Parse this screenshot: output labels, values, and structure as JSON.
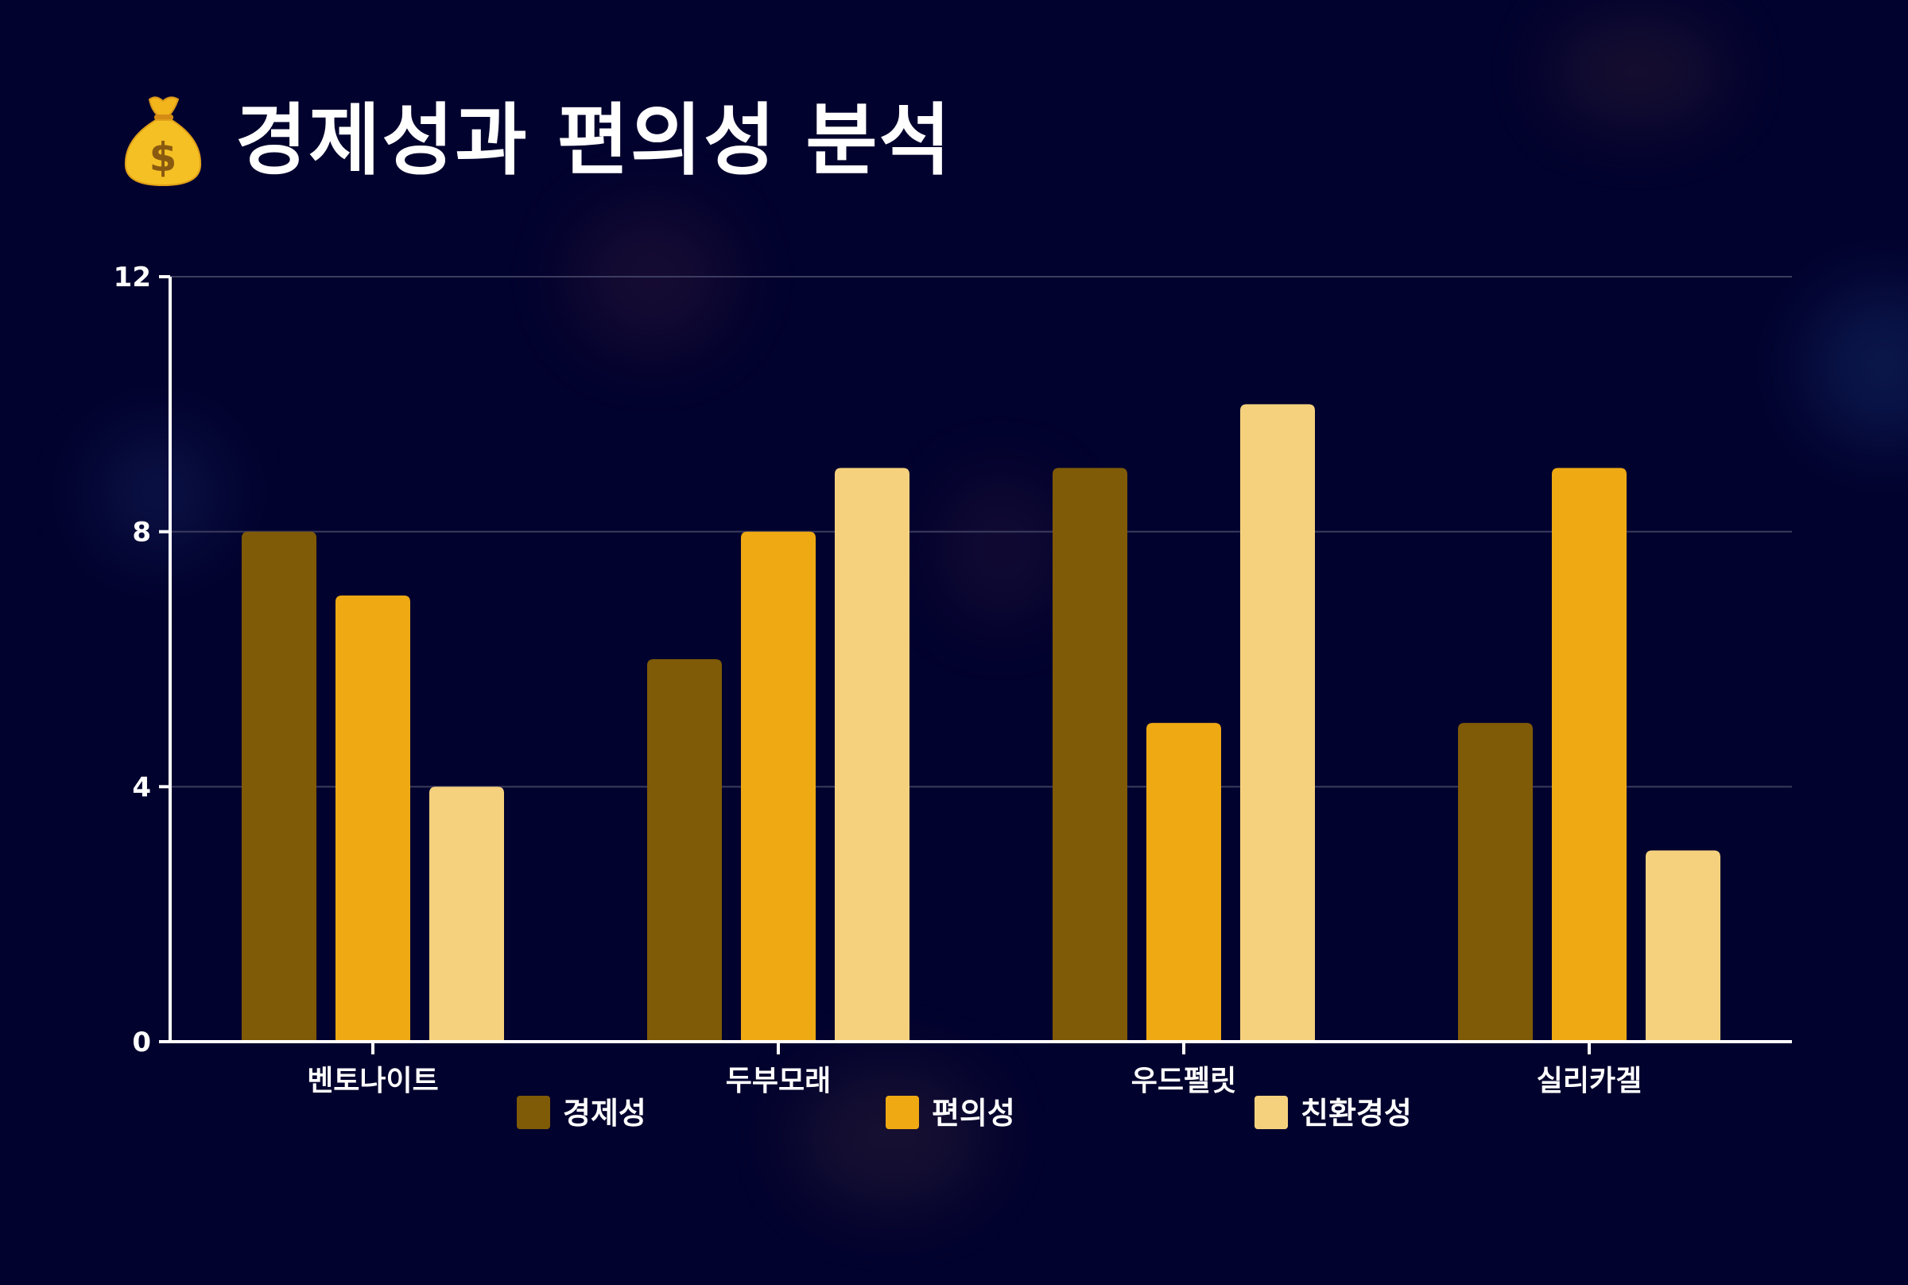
{
  "title": "경제성과 편의성 분석",
  "title_icon": "money-bag-icon",
  "colors": {
    "background": "#02022e",
    "grid": "#3c3c5e",
    "axis": "#ffffff"
  },
  "chart_data": {
    "type": "bar",
    "categories": [
      "벤토나이트",
      "두부모래",
      "우드펠릿",
      "실리카겔"
    ],
    "series": [
      {
        "name": "경제성",
        "values": [
          8,
          6,
          9,
          5
        ],
        "color": "#7f5a07"
      },
      {
        "name": "편의성",
        "values": [
          7,
          8,
          5,
          9
        ],
        "color": "#eea913"
      },
      {
        "name": "친환경성",
        "values": [
          4,
          9,
          10,
          3
        ],
        "color": "#f5d17d"
      }
    ],
    "yticks": [
      0,
      4,
      8,
      12
    ],
    "ylim": [
      0,
      12
    ],
    "grid": true,
    "legend_position": "bottom"
  }
}
